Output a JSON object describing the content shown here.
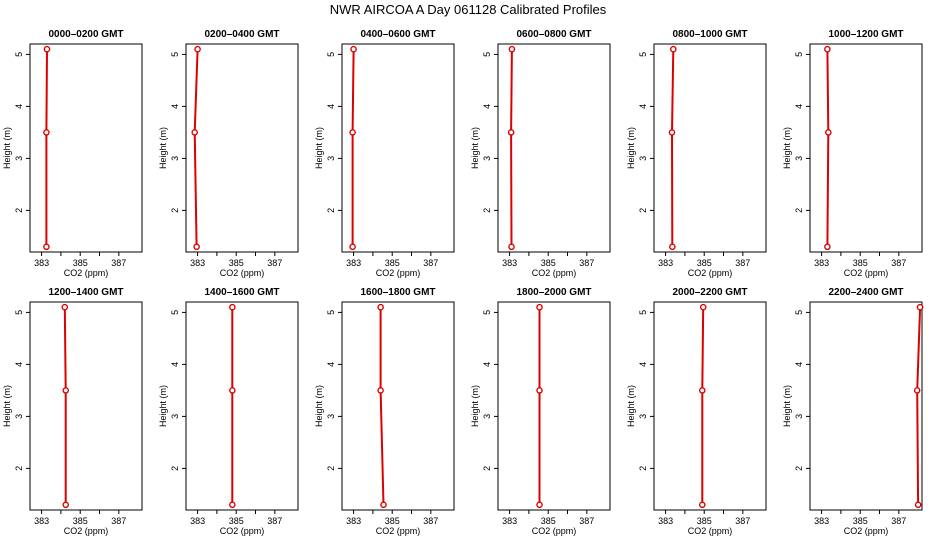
{
  "title": "NWR AIRCOA A  Day 061128  Calibrated Profiles",
  "colors": {
    "profile": "#dd0000",
    "axes": "#000000"
  },
  "chart_data": [
    {
      "type": "line",
      "title": "0000–0200 GMT",
      "xlabel": "CO2 (ppm)",
      "ylabel": "Height (m)",
      "xlim": [
        382.4,
        388.2
      ],
      "ylim": [
        1.2,
        5.2
      ],
      "xticks": [
        "383",
        "385",
        "387"
      ],
      "yticks": [
        "2",
        "3",
        "4",
        "5"
      ],
      "x": [
        383.25,
        383.25,
        383.28
      ],
      "y": [
        1.3,
        3.5,
        5.1
      ],
      "marker": "circle"
    },
    {
      "type": "line",
      "title": "0200–0400 GMT",
      "xlabel": "CO2 (ppm)",
      "ylabel": "Height (m)",
      "xlim": [
        382.4,
        388.2
      ],
      "ylim": [
        1.2,
        5.2
      ],
      "xticks": [
        "383",
        "385",
        "387"
      ],
      "yticks": [
        "2",
        "3",
        "4",
        "5"
      ],
      "x": [
        382.95,
        382.85,
        383.0
      ],
      "y": [
        1.3,
        3.5,
        5.1
      ],
      "marker": "circle"
    },
    {
      "type": "line",
      "title": "0400–0600 GMT",
      "xlabel": "CO2 (ppm)",
      "ylabel": "Height (m)",
      "xlim": [
        382.4,
        388.2
      ],
      "ylim": [
        1.2,
        5.2
      ],
      "xticks": [
        "383",
        "385",
        "387"
      ],
      "yticks": [
        "2",
        "3",
        "4",
        "5"
      ],
      "x": [
        382.95,
        382.95,
        383.0
      ],
      "y": [
        1.3,
        3.5,
        5.1
      ],
      "marker": "circle"
    },
    {
      "type": "line",
      "title": "0600–0800 GMT",
      "xlabel": "CO2 (ppm)",
      "ylabel": "Height (m)",
      "xlim": [
        382.4,
        388.2
      ],
      "ylim": [
        1.2,
        5.2
      ],
      "xticks": [
        "383",
        "385",
        "387"
      ],
      "yticks": [
        "2",
        "3",
        "4",
        "5"
      ],
      "x": [
        383.1,
        383.08,
        383.12
      ],
      "y": [
        1.3,
        3.5,
        5.1
      ],
      "marker": "circle"
    },
    {
      "type": "line",
      "title": "0800–1000 GMT",
      "xlabel": "CO2 (ppm)",
      "ylabel": "Height (m)",
      "xlim": [
        382.4,
        388.2
      ],
      "ylim": [
        1.2,
        5.2
      ],
      "xticks": [
        "383",
        "385",
        "387"
      ],
      "yticks": [
        "2",
        "3",
        "4",
        "5"
      ],
      "x": [
        383.35,
        383.33,
        383.4
      ],
      "y": [
        1.3,
        3.5,
        5.1
      ],
      "marker": "circle"
    },
    {
      "type": "line",
      "title": "1000–1200 GMT",
      "xlabel": "CO2 (ppm)",
      "ylabel": "Height (m)",
      "xlim": [
        382.4,
        388.2
      ],
      "ylim": [
        1.2,
        5.2
      ],
      "xticks": [
        "383",
        "385",
        "387"
      ],
      "yticks": [
        "2",
        "3",
        "4",
        "5"
      ],
      "x": [
        383.3,
        383.35,
        383.3
      ],
      "y": [
        1.3,
        3.5,
        5.1
      ],
      "marker": "circle"
    },
    {
      "type": "line",
      "title": "1200–1400 GMT",
      "xlabel": "CO2 (ppm)",
      "ylabel": "Height (m)",
      "xlim": [
        382.4,
        388.2
      ],
      "ylim": [
        1.2,
        5.2
      ],
      "xticks": [
        "383",
        "385",
        "387"
      ],
      "yticks": [
        "2",
        "3",
        "4",
        "5"
      ],
      "x": [
        384.25,
        384.25,
        384.2
      ],
      "y": [
        1.3,
        3.5,
        5.1
      ],
      "marker": "circle"
    },
    {
      "type": "line",
      "title": "1400–1600 GMT",
      "xlabel": "CO2 (ppm)",
      "ylabel": "Height (m)",
      "xlim": [
        382.4,
        388.2
      ],
      "ylim": [
        1.2,
        5.2
      ],
      "xticks": [
        "383",
        "385",
        "387"
      ],
      "yticks": [
        "2",
        "3",
        "4",
        "5"
      ],
      "x": [
        384.8,
        384.8,
        384.8
      ],
      "y": [
        1.3,
        3.5,
        5.1
      ],
      "marker": "circle"
    },
    {
      "type": "line",
      "title": "1600–1800 GMT",
      "xlabel": "CO2 (ppm)",
      "ylabel": "Height (m)",
      "xlim": [
        382.4,
        388.2
      ],
      "ylim": [
        1.2,
        5.2
      ],
      "xticks": [
        "383",
        "385",
        "387"
      ],
      "yticks": [
        "2",
        "3",
        "4",
        "5"
      ],
      "x": [
        384.55,
        384.4,
        384.4
      ],
      "y": [
        1.3,
        3.5,
        5.1
      ],
      "marker": "circle"
    },
    {
      "type": "line",
      "title": "1800–2000 GMT",
      "xlabel": "CO2 (ppm)",
      "ylabel": "Height (m)",
      "xlim": [
        382.4,
        388.2
      ],
      "ylim": [
        1.2,
        5.2
      ],
      "xticks": [
        "383",
        "385",
        "387"
      ],
      "yticks": [
        "2",
        "3",
        "4",
        "5"
      ],
      "x": [
        384.55,
        384.55,
        384.55
      ],
      "y": [
        1.3,
        3.5,
        5.1
      ],
      "marker": "circle"
    },
    {
      "type": "line",
      "title": "2000–2200 GMT",
      "xlabel": "CO2 (ppm)",
      "ylabel": "Height (m)",
      "xlim": [
        382.4,
        388.2
      ],
      "ylim": [
        1.2,
        5.2
      ],
      "xticks": [
        "383",
        "385",
        "387"
      ],
      "yticks": [
        "2",
        "3",
        "4",
        "5"
      ],
      "x": [
        384.9,
        384.9,
        384.95
      ],
      "y": [
        1.3,
        3.5,
        5.1
      ],
      "marker": "circle"
    },
    {
      "type": "line",
      "title": "2200–2400 GMT",
      "xlabel": "CO2 (ppm)",
      "ylabel": "Height (m)",
      "xlim": [
        382.4,
        388.2
      ],
      "ylim": [
        1.2,
        5.2
      ],
      "xticks": [
        "383",
        "385",
        "387"
      ],
      "yticks": [
        "2",
        "3",
        "4",
        "5"
      ],
      "x": [
        388.0,
        387.95,
        388.1
      ],
      "y": [
        1.3,
        3.5,
        5.1
      ],
      "marker": "circle"
    }
  ]
}
